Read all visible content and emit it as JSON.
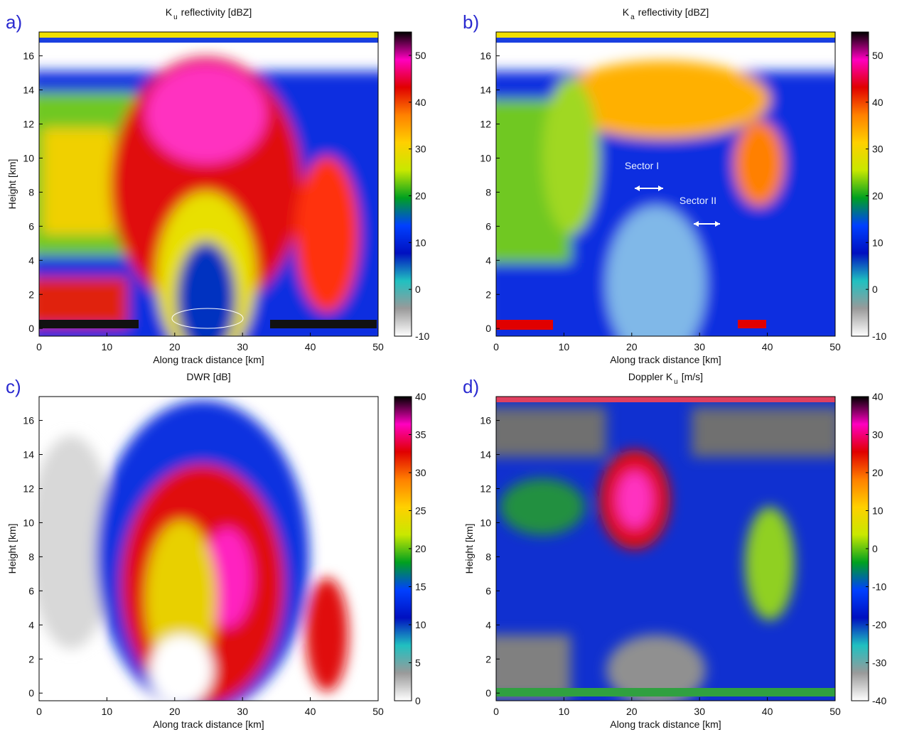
{
  "chart_data": [
    {
      "type": "heatmap",
      "panel_label": "a)",
      "title_main": "K",
      "title_sub": "u",
      "title_rest": "reflectivity [dBZ]",
      "xlabel": "Along track distance [km]",
      "ylabel": "Height [km]",
      "xlim": [
        0,
        50
      ],
      "ylim": [
        -0.45,
        17.4
      ],
      "xticks": [
        0,
        10,
        20,
        30,
        40,
        50
      ],
      "yticks": [
        0,
        2,
        4,
        6,
        8,
        10,
        12,
        14,
        16
      ],
      "colorbar": {
        "lim": [
          -10,
          55
        ],
        "ticks": [
          -10,
          0,
          10,
          20,
          30,
          40,
          50
        ],
        "colors": [
          "#ffffff",
          "#9a9a9a",
          "#20c0c0",
          "#0010c0",
          "#0040ff",
          "#00a020",
          "#c8e800",
          "#ffd000",
          "#ff8000",
          "#e00000",
          "#ff00c0",
          "#000000"
        ]
      }
    },
    {
      "type": "heatmap",
      "panel_label": "b)",
      "title_main": "K",
      "title_sub": "a",
      "title_rest": "reflectivity [dBZ]",
      "xlabel": "Along track distance [km]",
      "xlim": [
        0,
        50
      ],
      "ylim": [
        -0.45,
        17.4
      ],
      "xticks": [
        0,
        10,
        20,
        30,
        40,
        50
      ],
      "yticks": [
        0,
        2,
        4,
        6,
        8,
        10,
        12,
        14,
        16
      ],
      "annotations": [
        "Sector I",
        "Sector II"
      ],
      "colorbar": {
        "lim": [
          -10,
          55
        ],
        "ticks": [
          -10,
          0,
          10,
          20,
          30,
          40,
          50
        ],
        "colors": [
          "#ffffff",
          "#9a9a9a",
          "#20c0c0",
          "#0010c0",
          "#0040ff",
          "#00a020",
          "#c8e800",
          "#ffd000",
          "#ff8000",
          "#e00000",
          "#ff00c0",
          "#000000"
        ]
      }
    },
    {
      "type": "heatmap",
      "panel_label": "c)",
      "title_main": "DWR [dB]",
      "xlabel": "Along track distance [km]",
      "ylabel": "Height [km]",
      "xlim": [
        0,
        50
      ],
      "ylim": [
        -0.45,
        17.4
      ],
      "xticks": [
        0,
        10,
        20,
        30,
        40,
        50
      ],
      "yticks": [
        0,
        2,
        4,
        6,
        8,
        10,
        12,
        14,
        16
      ],
      "colorbar": {
        "lim": [
          0,
          40
        ],
        "ticks": [
          0,
          5,
          10,
          15,
          20,
          25,
          30,
          35,
          40
        ],
        "colors": [
          "#ffffff",
          "#9a9a9a",
          "#20c0c0",
          "#0010c0",
          "#0040ff",
          "#00a020",
          "#c8e800",
          "#ffd000",
          "#ff8000",
          "#e00000",
          "#ff00c0",
          "#000000"
        ]
      }
    },
    {
      "type": "heatmap",
      "panel_label": "d)",
      "title_main": "Doppler K",
      "title_sub": "u",
      "title_rest": "[m/s]",
      "xlabel": "Along track distance [km]",
      "ylabel": "Height [km]",
      "xlim": [
        0,
        50
      ],
      "ylim": [
        -0.45,
        17.4
      ],
      "xticks": [
        0,
        10,
        20,
        30,
        40,
        50
      ],
      "yticks": [
        0,
        2,
        4,
        6,
        8,
        10,
        12,
        14,
        16
      ],
      "colorbar": {
        "lim": [
          -40,
          40
        ],
        "ticks": [
          -40,
          -30,
          -20,
          -10,
          0,
          10,
          20,
          30,
          40
        ],
        "colors": [
          "#ffffff",
          "#9a9a9a",
          "#20c0c0",
          "#0010c0",
          "#0040ff",
          "#00a020",
          "#c8e800",
          "#ffd000",
          "#ff8000",
          "#e00000",
          "#ff00c0",
          "#000000"
        ]
      }
    }
  ]
}
